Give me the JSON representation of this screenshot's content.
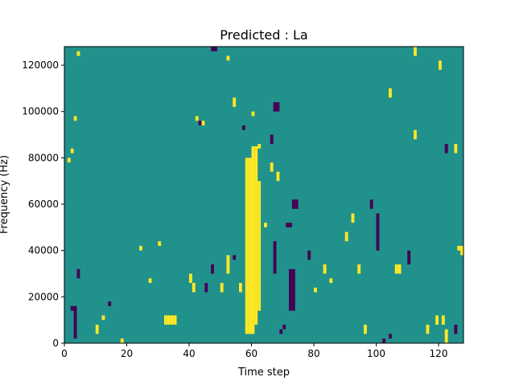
{
  "chart_data": {
    "type": "heatmap",
    "title": "Predicted : La",
    "xlabel": "Time step",
    "ylabel": "Frequency (Hz)",
    "xlim": [
      0,
      128
    ],
    "ylim": [
      0,
      128000
    ],
    "x_ticks": [
      0,
      20,
      40,
      60,
      80,
      100,
      120
    ],
    "y_ticks": [
      0,
      20000,
      40000,
      60000,
      80000,
      100000,
      120000
    ],
    "x_tick_labels": [
      "0",
      "20",
      "40",
      "60",
      "80",
      "100",
      "120"
    ],
    "y_tick_labels": [
      "0",
      "20000",
      "40000",
      "60000",
      "80000",
      "100000",
      "120000"
    ],
    "n_rows": 64,
    "colormap": "viridis",
    "colors": {
      "low": "#440154",
      "mid": "#21918c",
      "high": "#fde725"
    },
    "values_note": "sparse binary-like spectrogram; background is mid value",
    "cells": [
      {
        "t": 58,
        "f0": 4000,
        "f1": 80000,
        "v": "high"
      },
      {
        "t": 59,
        "f0": 4000,
        "f1": 80000,
        "v": "high"
      },
      {
        "t": 60,
        "f0": 4000,
        "f1": 85000,
        "v": "high"
      },
      {
        "t": 61,
        "f0": 8000,
        "f1": 85000,
        "v": "high"
      },
      {
        "t": 62,
        "f0": 14000,
        "f1": 70000,
        "v": "high"
      },
      {
        "t": 64,
        "f0": 50000,
        "f1": 52000,
        "v": "high"
      },
      {
        "t": 66,
        "f0": 74000,
        "f1": 78000,
        "v": "high"
      },
      {
        "t": 68,
        "f0": 70000,
        "f1": 74000,
        "v": "high"
      },
      {
        "t": 72,
        "f0": 14000,
        "f1": 32000,
        "v": "low"
      },
      {
        "t": 73,
        "f0": 14000,
        "f1": 32000,
        "v": "low"
      },
      {
        "t": 73,
        "f0": 58000,
        "f1": 62000,
        "v": "low"
      },
      {
        "t": 74,
        "f0": 58000,
        "f1": 62000,
        "v": "low"
      },
      {
        "t": 71,
        "f0": 50000,
        "f1": 52000,
        "v": "low"
      },
      {
        "t": 72,
        "f0": 50000,
        "f1": 52000,
        "v": "low"
      },
      {
        "t": 67,
        "f0": 100000,
        "f1": 104000,
        "v": "low"
      },
      {
        "t": 68,
        "f0": 100000,
        "f1": 104000,
        "v": "low"
      },
      {
        "t": 66,
        "f0": 86000,
        "f1": 90000,
        "v": "low"
      },
      {
        "t": 67,
        "f0": 30000,
        "f1": 44000,
        "v": "low"
      },
      {
        "t": 69,
        "f0": 4000,
        "f1": 6000,
        "v": "low"
      },
      {
        "t": 70,
        "f0": 6000,
        "f1": 8000,
        "v": "low"
      },
      {
        "t": 2,
        "f0": 14000,
        "f1": 16000,
        "v": "low"
      },
      {
        "t": 3,
        "f0": 14000,
        "f1": 16000,
        "v": "low"
      },
      {
        "t": 3,
        "f0": 2000,
        "f1": 16000,
        "v": "low"
      },
      {
        "t": 4,
        "f0": 28000,
        "f1": 32000,
        "v": "low"
      },
      {
        "t": 1,
        "f0": 78000,
        "f1": 80000,
        "v": "high"
      },
      {
        "t": 2,
        "f0": 82000,
        "f1": 84000,
        "v": "high"
      },
      {
        "t": 3,
        "f0": 96000,
        "f1": 98000,
        "v": "high"
      },
      {
        "t": 4,
        "f0": 124000,
        "f1": 126000,
        "v": "high"
      },
      {
        "t": 10,
        "f0": 4000,
        "f1": 8000,
        "v": "high"
      },
      {
        "t": 12,
        "f0": 10000,
        "f1": 12000,
        "v": "high"
      },
      {
        "t": 14,
        "f0": 16000,
        "f1": 18000,
        "v": "low"
      },
      {
        "t": 18,
        "f0": 0,
        "f1": 2000,
        "v": "high"
      },
      {
        "t": 24,
        "f0": 40000,
        "f1": 42000,
        "v": "high"
      },
      {
        "t": 27,
        "f0": 26000,
        "f1": 28000,
        "v": "high"
      },
      {
        "t": 30,
        "f0": 42000,
        "f1": 44000,
        "v": "high"
      },
      {
        "t": 32,
        "f0": 8000,
        "f1": 12000,
        "v": "high"
      },
      {
        "t": 33,
        "f0": 8000,
        "f1": 12000,
        "v": "high"
      },
      {
        "t": 34,
        "f0": 8000,
        "f1": 12000,
        "v": "high"
      },
      {
        "t": 35,
        "f0": 8000,
        "f1": 12000,
        "v": "high"
      },
      {
        "t": 40,
        "f0": 26000,
        "f1": 30000,
        "v": "high"
      },
      {
        "t": 41,
        "f0": 22000,
        "f1": 26000,
        "v": "high"
      },
      {
        "t": 45,
        "f0": 22000,
        "f1": 26000,
        "v": "low"
      },
      {
        "t": 47,
        "f0": 30000,
        "f1": 34000,
        "v": "low"
      },
      {
        "t": 50,
        "f0": 22000,
        "f1": 26000,
        "v": "high"
      },
      {
        "t": 52,
        "f0": 30000,
        "f1": 38000,
        "v": "high"
      },
      {
        "t": 54,
        "f0": 36000,
        "f1": 38000,
        "v": "low"
      },
      {
        "t": 56,
        "f0": 22000,
        "f1": 26000,
        "v": "high"
      },
      {
        "t": 42,
        "f0": 96000,
        "f1": 98000,
        "v": "high"
      },
      {
        "t": 43,
        "f0": 94000,
        "f1": 96000,
        "v": "low"
      },
      {
        "t": 44,
        "f0": 94000,
        "f1": 96000,
        "v": "high"
      },
      {
        "t": 47,
        "f0": 126000,
        "f1": 128000,
        "v": "low"
      },
      {
        "t": 48,
        "f0": 126000,
        "f1": 128000,
        "v": "low"
      },
      {
        "t": 52,
        "f0": 122000,
        "f1": 124000,
        "v": "high"
      },
      {
        "t": 54,
        "f0": 102000,
        "f1": 106000,
        "v": "high"
      },
      {
        "t": 57,
        "f0": 92000,
        "f1": 94000,
        "v": "low"
      },
      {
        "t": 60,
        "f0": 98000,
        "f1": 100000,
        "v": "high"
      },
      {
        "t": 62,
        "f0": 84000,
        "f1": 86000,
        "v": "high"
      },
      {
        "t": 78,
        "f0": 36000,
        "f1": 40000,
        "v": "low"
      },
      {
        "t": 80,
        "f0": 22000,
        "f1": 24000,
        "v": "high"
      },
      {
        "t": 83,
        "f0": 30000,
        "f1": 34000,
        "v": "high"
      },
      {
        "t": 85,
        "f0": 26000,
        "f1": 28000,
        "v": "high"
      },
      {
        "t": 90,
        "f0": 44000,
        "f1": 48000,
        "v": "high"
      },
      {
        "t": 92,
        "f0": 52000,
        "f1": 56000,
        "v": "high"
      },
      {
        "t": 94,
        "f0": 30000,
        "f1": 34000,
        "v": "high"
      },
      {
        "t": 96,
        "f0": 4000,
        "f1": 8000,
        "v": "high"
      },
      {
        "t": 98,
        "f0": 58000,
        "f1": 62000,
        "v": "low"
      },
      {
        "t": 100,
        "f0": 40000,
        "f1": 56000,
        "v": "low"
      },
      {
        "t": 102,
        "f0": 0,
        "f1": 2000,
        "v": "low"
      },
      {
        "t": 104,
        "f0": 2000,
        "f1": 4000,
        "v": "low"
      },
      {
        "t": 106,
        "f0": 30000,
        "f1": 34000,
        "v": "high"
      },
      {
        "t": 107,
        "f0": 30000,
        "f1": 34000,
        "v": "high"
      },
      {
        "t": 110,
        "f0": 34000,
        "f1": 40000,
        "v": "low"
      },
      {
        "t": 112,
        "f0": 88000,
        "f1": 92000,
        "v": "high"
      },
      {
        "t": 116,
        "f0": 4000,
        "f1": 8000,
        "v": "high"
      },
      {
        "t": 119,
        "f0": 8000,
        "f1": 12000,
        "v": "high"
      },
      {
        "t": 121,
        "f0": 8000,
        "f1": 12000,
        "v": "high"
      },
      {
        "t": 122,
        "f0": 0,
        "f1": 6000,
        "v": "high"
      },
      {
        "t": 125,
        "f0": 4000,
        "f1": 8000,
        "v": "low"
      },
      {
        "t": 126,
        "f0": 40000,
        "f1": 42000,
        "v": "high"
      },
      {
        "t": 127,
        "f0": 38000,
        "f1": 42000,
        "v": "high"
      },
      {
        "t": 122,
        "f0": 82000,
        "f1": 86000,
        "v": "low"
      },
      {
        "t": 125,
        "f0": 82000,
        "f1": 86000,
        "v": "high"
      },
      {
        "t": 120,
        "f0": 118000,
        "f1": 122000,
        "v": "high"
      },
      {
        "t": 112,
        "f0": 124000,
        "f1": 128000,
        "v": "high"
      },
      {
        "t": 104,
        "f0": 106000,
        "f1": 110000,
        "v": "high"
      }
    ]
  }
}
